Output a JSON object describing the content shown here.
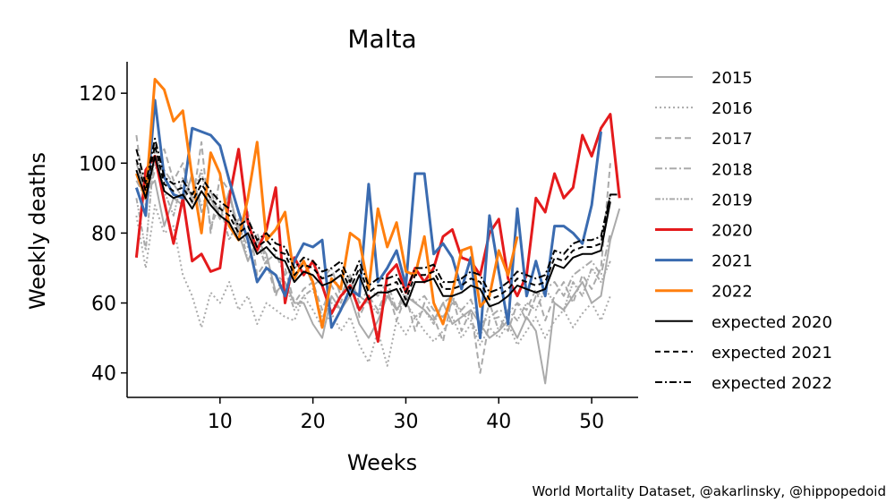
{
  "chart_data": {
    "type": "line",
    "title": "Malta",
    "xlabel": "Weeks",
    "ylabel": "Weekly deaths",
    "xlim": [
      0,
      55
    ],
    "ylim": [
      33,
      129
    ],
    "xticks": [
      10,
      20,
      30,
      40,
      50
    ],
    "yticks": [
      40,
      60,
      80,
      100,
      120
    ],
    "grid": false,
    "legend_position": "right",
    "series": [
      {
        "name": "2015",
        "color": "#aaaaaa",
        "dash": "solid",
        "width": 2,
        "x": [
          1,
          2,
          3,
          4,
          5,
          6,
          7,
          8,
          9,
          10,
          11,
          12,
          13,
          14,
          15,
          16,
          17,
          18,
          19,
          20,
          21,
          22,
          23,
          24,
          25,
          26,
          27,
          28,
          29,
          30,
          31,
          32,
          33,
          34,
          35,
          36,
          37,
          38,
          39,
          40,
          41,
          42,
          43,
          44,
          45,
          46,
          47,
          48,
          49,
          50,
          51,
          52,
          53
        ],
        "values": [
          100,
          92,
          95,
          82,
          90,
          88,
          97,
          86,
          90,
          84,
          92,
          80,
          72,
          78,
          74,
          63,
          66,
          60,
          60,
          54,
          50,
          62,
          58,
          62,
          54,
          50,
          55,
          62,
          58,
          62,
          60,
          58,
          55,
          60,
          54,
          56,
          58,
          54,
          50,
          52,
          55,
          50,
          56,
          52,
          37,
          60,
          58,
          62,
          66,
          60,
          62,
          78,
          87
        ]
      },
      {
        "name": "2016",
        "color": "#aaaaaa",
        "dash": "2,3",
        "width": 2,
        "x": [
          1,
          2,
          3,
          4,
          5,
          6,
          7,
          8,
          9,
          10,
          11,
          12,
          13,
          14,
          15,
          16,
          17,
          18,
          19,
          20,
          21,
          22,
          23,
          24,
          25,
          26,
          27,
          28,
          29,
          30,
          31,
          32,
          33,
          34,
          35,
          36,
          37,
          38,
          39,
          40,
          41,
          42,
          43,
          44,
          45,
          46,
          47,
          48,
          49,
          50,
          51,
          52
        ],
        "values": [
          85,
          70,
          88,
          80,
          82,
          68,
          62,
          53,
          63,
          60,
          66,
          58,
          62,
          54,
          60,
          58,
          56,
          55,
          62,
          58,
          53,
          57,
          52,
          56,
          48,
          43,
          52,
          42,
          55,
          51,
          56,
          52,
          49,
          52,
          56,
          50,
          54,
          48,
          53,
          50,
          54,
          48,
          52,
          56,
          50,
          55,
          58,
          53,
          57,
          60,
          55,
          62
        ]
      },
      {
        "name": "2017",
        "color": "#aaaaaa",
        "dash": "7,4",
        "width": 2,
        "x": [
          1,
          2,
          3,
          4,
          5,
          6,
          7,
          8,
          9,
          10,
          11,
          12,
          13,
          14,
          15,
          16,
          17,
          18,
          19,
          20,
          21,
          22,
          23,
          24,
          25,
          26,
          27,
          28,
          29,
          30,
          31,
          32,
          33,
          34,
          35,
          36,
          37,
          38,
          39,
          40,
          41,
          42,
          43,
          44,
          45,
          46,
          47,
          48,
          49,
          50,
          51,
          52
        ],
        "values": [
          108,
          88,
          98,
          104,
          95,
          100,
          88,
          106,
          80,
          96,
          92,
          78,
          86,
          68,
          72,
          62,
          70,
          60,
          64,
          66,
          58,
          65,
          60,
          68,
          56,
          62,
          58,
          64,
          55,
          62,
          52,
          60,
          56,
          49,
          62,
          52,
          58,
          40,
          55,
          56,
          52,
          60,
          58,
          64,
          55,
          62,
          66,
          60,
          68,
          64,
          70,
          100
        ]
      },
      {
        "name": "2018",
        "color": "#aaaaaa",
        "dash": "8,3,2,3",
        "width": 2,
        "x": [
          1,
          2,
          3,
          4,
          5,
          6,
          7,
          8,
          9,
          10,
          11,
          12,
          13,
          14,
          15,
          16,
          17,
          18,
          19,
          20,
          21,
          22,
          23,
          24,
          25,
          26,
          27,
          28,
          29,
          30,
          31,
          32,
          33,
          34,
          35,
          36,
          37,
          38,
          39,
          40,
          41,
          42,
          43,
          44,
          45,
          46,
          47,
          48,
          49,
          50,
          51,
          52
        ],
        "values": [
          95,
          90,
          100,
          98,
          94,
          90,
          96,
          88,
          92,
          85,
          90,
          82,
          76,
          80,
          72,
          74,
          68,
          70,
          72,
          65,
          67,
          70,
          62,
          68,
          60,
          64,
          62,
          66,
          58,
          64,
          60,
          62,
          58,
          56,
          60,
          58,
          61,
          54,
          56,
          58,
          57,
          60,
          55,
          62,
          64,
          66,
          62,
          68,
          70,
          72,
          68,
          80
        ]
      },
      {
        "name": "2019",
        "color": "#aaaaaa",
        "dash": "6,2,2,2,2,2",
        "width": 2,
        "x": [
          1,
          2,
          3,
          4,
          5,
          6,
          7,
          8,
          9,
          10,
          11,
          12,
          13,
          14,
          15,
          16,
          17,
          18,
          19,
          20,
          21,
          22,
          23,
          24,
          25,
          26,
          27,
          28,
          29,
          30,
          31,
          32,
          33,
          34,
          35,
          36,
          37,
          38,
          39,
          40,
          41,
          42,
          43,
          44,
          45,
          46,
          47,
          48,
          49,
          50,
          51,
          52
        ],
        "values": [
          90,
          75,
          105,
          92,
          85,
          96,
          90,
          98,
          82,
          88,
          78,
          84,
          72,
          78,
          70,
          68,
          66,
          58,
          62,
          64,
          56,
          60,
          58,
          65,
          62,
          60,
          57,
          63,
          58,
          60,
          56,
          58,
          54,
          60,
          62,
          57,
          55,
          50,
          60,
          52,
          58,
          55,
          60,
          58,
          64,
          60,
          58,
          66,
          62,
          70,
          66,
          72
        ]
      },
      {
        "name": "2020",
        "color": "#e41a1c",
        "dash": "solid",
        "width": 3,
        "x": [
          1,
          2,
          3,
          4,
          5,
          6,
          7,
          8,
          9,
          10,
          11,
          12,
          13,
          14,
          15,
          16,
          17,
          18,
          19,
          20,
          21,
          22,
          23,
          24,
          25,
          26,
          27,
          28,
          29,
          30,
          31,
          32,
          33,
          34,
          35,
          36,
          37,
          38,
          39,
          40,
          41,
          42,
          43,
          44,
          45,
          46,
          47,
          48,
          49,
          50,
          51,
          52,
          53
        ],
        "values": [
          73,
          98,
          102,
          89,
          77,
          90,
          72,
          74,
          69,
          70,
          90,
          104,
          83,
          75,
          81,
          93,
          60,
          73,
          68,
          72,
          65,
          57,
          62,
          65,
          58,
          62,
          49,
          68,
          71,
          63,
          70,
          66,
          70,
          79,
          81,
          73,
          72,
          68,
          80,
          84,
          67,
          62,
          68,
          90,
          86,
          97,
          90,
          93,
          108,
          102,
          110,
          114,
          90
        ]
      },
      {
        "name": "2021",
        "color": "#3a6bb0",
        "dash": "solid",
        "width": 3,
        "x": [
          1,
          2,
          3,
          4,
          5,
          6,
          7,
          8,
          9,
          10,
          11,
          12,
          13,
          14,
          15,
          16,
          17,
          18,
          19,
          20,
          21,
          22,
          23,
          24,
          25,
          26,
          27,
          28,
          29,
          30,
          31,
          32,
          33,
          34,
          35,
          36,
          37,
          38,
          39,
          40,
          41,
          42,
          43,
          44,
          45,
          46,
          47,
          48,
          49,
          50,
          51
        ],
        "values": [
          93,
          85,
          118,
          96,
          91,
          90,
          110,
          109,
          108,
          105,
          95,
          86,
          78,
          66,
          70,
          68,
          62,
          72,
          77,
          76,
          78,
          53,
          58,
          64,
          62,
          94,
          66,
          70,
          75,
          65,
          97,
          97,
          74,
          77,
          73,
          64,
          73,
          50,
          85,
          69,
          54,
          87,
          62,
          72,
          62,
          82,
          82,
          80,
          77,
          88,
          109
        ]
      },
      {
        "name": "2022",
        "color": "#ff7f0e",
        "dash": "solid",
        "width": 3,
        "x": [
          1,
          2,
          3,
          4,
          5,
          6,
          7,
          8,
          9,
          10,
          11,
          12,
          13,
          14,
          15,
          16,
          17,
          18,
          19,
          20,
          21,
          22,
          23,
          24,
          25,
          26,
          27,
          28,
          29,
          30,
          31,
          32,
          33,
          34,
          35,
          36,
          37,
          38,
          39,
          40,
          41,
          42
        ],
        "values": [
          97,
          90,
          124,
          121,
          112,
          115,
          96,
          80,
          103,
          97,
          82,
          78,
          90,
          106,
          78,
          81,
          86,
          67,
          72,
          66,
          53,
          67,
          64,
          80,
          78,
          64,
          87,
          76,
          83,
          69,
          68,
          79,
          60,
          54,
          63,
          75,
          76,
          59,
          62,
          75,
          68,
          79
        ]
      },
      {
        "name": "expected 2020",
        "color": "#000000",
        "dash": "solid",
        "width": 2,
        "x": [
          1,
          2,
          3,
          4,
          5,
          6,
          7,
          8,
          9,
          10,
          11,
          12,
          13,
          14,
          15,
          16,
          17,
          18,
          19,
          20,
          21,
          22,
          23,
          24,
          25,
          26,
          27,
          28,
          29,
          30,
          31,
          32,
          33,
          34,
          35,
          36,
          37,
          38,
          39,
          40,
          41,
          42,
          43,
          44,
          45,
          46,
          47,
          48,
          49,
          50,
          51,
          52
        ],
        "values": [
          98,
          90,
          102,
          92,
          90,
          91,
          87,
          92,
          88,
          85,
          83,
          78,
          80,
          74,
          76,
          73,
          72,
          66,
          69,
          68,
          65,
          66,
          68,
          62,
          68,
          61,
          63,
          63,
          64,
          59,
          66,
          66,
          67,
          62,
          62,
          63,
          65,
          64,
          59,
          60,
          62,
          65,
          64,
          63,
          64,
          71,
          70,
          73,
          74,
          74,
          75,
          89
        ]
      },
      {
        "name": "expected 2021",
        "color": "#000000",
        "dash": "6,4",
        "width": 2,
        "x": [
          1,
          2,
          3,
          4,
          5,
          6,
          7,
          8,
          9,
          10,
          11,
          12,
          13,
          14,
          15,
          16,
          17,
          18,
          19,
          20,
          21,
          22,
          23,
          24,
          25,
          26,
          27,
          28,
          29,
          30,
          31,
          32,
          33,
          34,
          35,
          36,
          37,
          38,
          39,
          40,
          41,
          42,
          43,
          44,
          45,
          46,
          47,
          48,
          49,
          50,
          51,
          52
        ],
        "values": [
          101,
          92,
          105,
          94,
          92,
          93,
          89,
          94,
          90,
          87,
          85,
          80,
          82,
          76,
          78,
          75,
          74,
          68,
          71,
          70,
          67,
          68,
          70,
          64,
          70,
          63,
          65,
          65,
          66,
          61,
          68,
          68,
          69,
          64,
          64,
          65,
          67,
          66,
          61,
          62,
          64,
          67,
          66,
          65,
          66,
          73,
          72,
          75,
          76,
          76,
          77,
          91
        ]
      },
      {
        "name": "expected 2022",
        "color": "#000000",
        "dash": "8,3,2,3",
        "width": 2,
        "x": [
          1,
          2,
          3,
          4,
          5,
          6,
          7,
          8,
          9,
          10,
          11,
          12,
          13,
          14,
          15,
          16,
          17,
          18,
          19,
          20,
          21,
          22,
          23,
          24,
          25,
          26,
          27,
          28,
          29,
          30,
          31,
          32,
          33,
          34,
          35,
          36,
          37,
          38,
          39,
          40,
          41,
          42,
          43,
          44,
          45,
          46,
          47,
          48,
          49,
          50,
          51,
          52,
          53
        ],
        "values": [
          104,
          94,
          107,
          96,
          94,
          95,
          91,
          96,
          92,
          89,
          87,
          82,
          84,
          78,
          80,
          77,
          76,
          70,
          73,
          72,
          69,
          70,
          72,
          66,
          72,
          65,
          67,
          67,
          68,
          63,
          70,
          70,
          71,
          66,
          66,
          67,
          69,
          68,
          63,
          64,
          66,
          69,
          68,
          67,
          68,
          75,
          74,
          77,
          78,
          78,
          79,
          91,
          91
        ]
      }
    ]
  },
  "credit": "World Mortality Dataset, @akarlinsky, @hippopedoid"
}
